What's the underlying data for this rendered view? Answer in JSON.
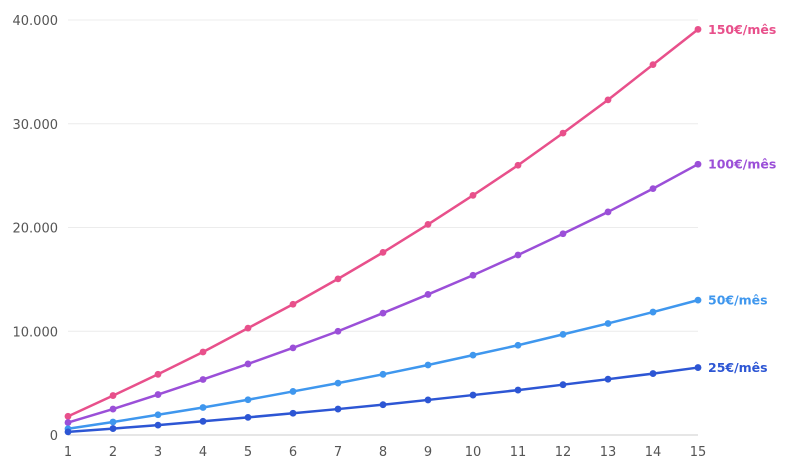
{
  "chart_data": {
    "type": "line",
    "title": "",
    "xlabel": "",
    "ylabel": "",
    "x": [
      1,
      2,
      3,
      4,
      5,
      6,
      7,
      8,
      9,
      10,
      11,
      12,
      13,
      14,
      15
    ],
    "x_tick_labels": [
      "1",
      "2",
      "3",
      "4",
      "5",
      "6",
      "7",
      "8",
      "9",
      "10",
      "11",
      "12",
      "13",
      "14",
      "15"
    ],
    "xlim": [
      1,
      15
    ],
    "ylim": [
      0,
      40000
    ],
    "y_ticks": [
      0,
      10000,
      20000,
      30000,
      40000
    ],
    "y_tick_labels": [
      "0",
      "10.000",
      "20.000",
      "30.000",
      "40.000"
    ],
    "grid": "horizontal",
    "legend": "none (series labelled at right end of each line)",
    "series": [
      {
        "name": "150€/mês",
        "color": "#e8508b",
        "values": [
          1800,
          3800,
          5850,
          8000,
          10300,
          12600,
          15050,
          17600,
          20300,
          23100,
          26000,
          29100,
          32300,
          35700,
          39100
        ]
      },
      {
        "name": "100€/mês",
        "color": "#9b4fd8",
        "values": [
          1200,
          2500,
          3900,
          5350,
          6850,
          8400,
          10000,
          11750,
          13550,
          15400,
          17350,
          19400,
          21500,
          23750,
          26100
        ]
      },
      {
        "name": "50€/mês",
        "color": "#3f97ee",
        "values": [
          600,
          1250,
          1950,
          2650,
          3400,
          4200,
          5000,
          5850,
          6750,
          7700,
          8650,
          9700,
          10750,
          11850,
          13000
        ]
      },
      {
        "name": "25€/mês",
        "color": "#2d56d4",
        "values": [
          300,
          620,
          950,
          1320,
          1700,
          2100,
          2500,
          2920,
          3380,
          3850,
          4330,
          4850,
          5380,
          5920,
          6500
        ]
      }
    ]
  }
}
